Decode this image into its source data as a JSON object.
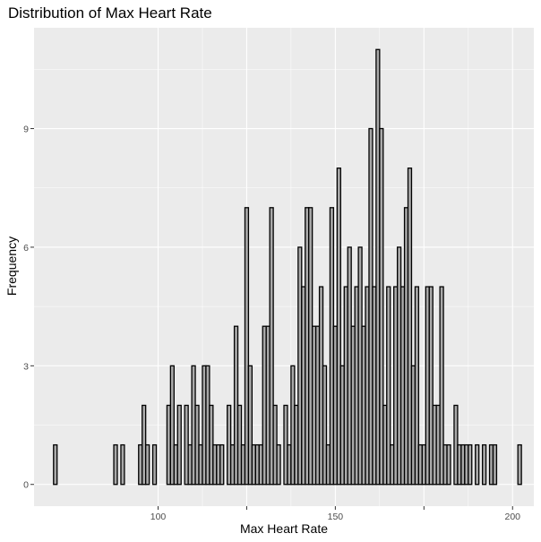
{
  "chart_data": {
    "type": "bar",
    "title": "Distribution of Max Heart Rate",
    "xlabel": "Max Heart Rate",
    "ylabel": "Frequency",
    "xlim": [
      65,
      206
    ],
    "ylim": [
      -0.55,
      11.55
    ],
    "x_ticks": [
      100,
      125,
      150,
      175,
      200
    ],
    "x_tick_labels": [
      "100",
      "",
      "150",
      "",
      "200"
    ],
    "y_ticks": [
      0,
      3,
      6,
      9
    ],
    "y_tick_labels": [
      "0",
      "3",
      "6",
      "9"
    ],
    "grid": true,
    "bin_width": 1,
    "x": [
      71,
      88,
      90,
      95,
      96,
      97,
      99,
      103,
      104,
      105,
      106,
      108,
      109,
      110,
      111,
      112,
      113,
      114,
      115,
      116,
      117,
      118,
      120,
      121,
      122,
      123,
      124,
      125,
      126,
      127,
      128,
      129,
      130,
      131,
      132,
      133,
      134,
      136,
      137,
      138,
      139,
      140,
      141,
      142,
      143,
      144,
      145,
      146,
      147,
      148,
      149,
      150,
      151,
      152,
      153,
      154,
      155,
      156,
      157,
      158,
      159,
      160,
      161,
      162,
      163,
      164,
      165,
      166,
      167,
      168,
      169,
      170,
      171,
      172,
      173,
      174,
      175,
      176,
      177,
      178,
      179,
      180,
      181,
      182,
      184,
      185,
      186,
      187,
      188,
      190,
      192,
      194,
      195,
      202
    ],
    "values": [
      1,
      1,
      1,
      1,
      2,
      1,
      1,
      2,
      3,
      1,
      2,
      2,
      1,
      3,
      2,
      1,
      3,
      3,
      2,
      1,
      1,
      1,
      2,
      1,
      4,
      2,
      1,
      7,
      3,
      1,
      1,
      1,
      4,
      4,
      7,
      2,
      1,
      2,
      1,
      3,
      2,
      6,
      5,
      7,
      7,
      4,
      4,
      5,
      3,
      1,
      7,
      4,
      8,
      3,
      5,
      6,
      4,
      5,
      6,
      4,
      5,
      9,
      5,
      11,
      9,
      2,
      5,
      1,
      5,
      6,
      5,
      7,
      8,
      3,
      5,
      1,
      1,
      5,
      5,
      2,
      2,
      5,
      1,
      1,
      2,
      1,
      1,
      1,
      1,
      1,
      1,
      1,
      1,
      1
    ]
  }
}
